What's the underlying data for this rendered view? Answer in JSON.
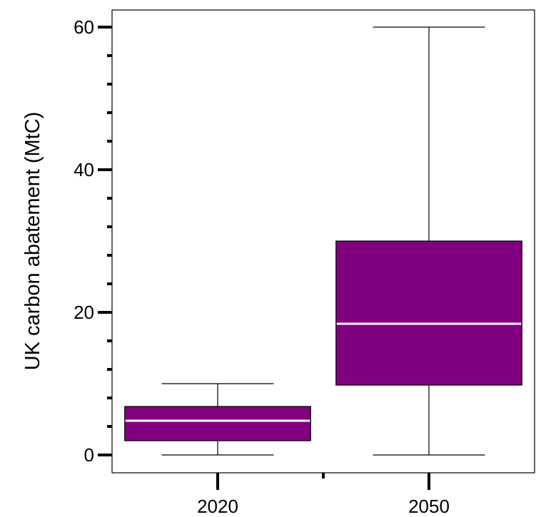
{
  "chart_data": {
    "type": "boxplot",
    "title": "",
    "xlabel": "",
    "ylabel": "UK carbon abatement (MtC)",
    "ylim": [
      -2,
      62.4
    ],
    "y_ticks": [
      0,
      20,
      40,
      60
    ],
    "y_tick_labels": [
      "0",
      "20",
      "40",
      "60"
    ],
    "y_minor_ticks": [
      4,
      8,
      12,
      16,
      24,
      28,
      32,
      36,
      44,
      48,
      52,
      56
    ],
    "categories": [
      "2020",
      "2050"
    ],
    "boxes": [
      {
        "category": "2020",
        "whisker_low": 0,
        "q1": 2,
        "median": 4.8,
        "q3": 6.8,
        "whisker_high": 10
      },
      {
        "category": "2050",
        "whisker_low": 0,
        "q1": 9.8,
        "median": 18.4,
        "q3": 30,
        "whisker_high": 60
      }
    ],
    "grid": false,
    "colors": {
      "box_fill": "#800080",
      "median_line": "#ffffff",
      "axis": "#000000"
    }
  }
}
